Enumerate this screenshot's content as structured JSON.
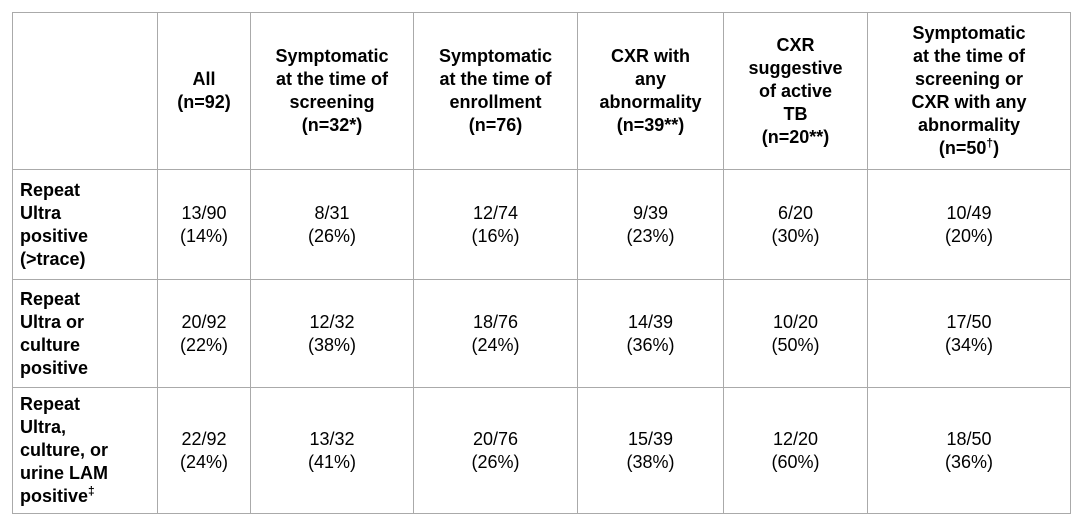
{
  "colors": {
    "background": "#ffffff",
    "border": "#aaaaaa",
    "text": "#000000"
  },
  "table": {
    "columns": [
      {
        "id": "row-label",
        "text": "",
        "sup": "",
        "post": ""
      },
      {
        "id": "all",
        "text": "All\n(n=92)",
        "sup": "",
        "post": ""
      },
      {
        "id": "symptomatic-screening",
        "text": "Symptomatic\nat the time of\nscreening\n(n=32*)",
        "sup": "",
        "post": ""
      },
      {
        "id": "symptomatic-enrollment",
        "text": "Symptomatic\nat the time of\nenrollment\n(n=76)",
        "sup": "",
        "post": ""
      },
      {
        "id": "cxr-any-abnormality",
        "text": "CXR with\nany\nabnormality\n(n=39**)",
        "sup": "",
        "post": ""
      },
      {
        "id": "cxr-active-tb",
        "text": "CXR\nsuggestive\nof active\nTB\n(n=20**)",
        "sup": "",
        "post": ""
      },
      {
        "id": "symptomatic-or-cxr",
        "text": "Symptomatic\nat the time of\nscreening or\nCXR with any\nabnormality\n(n=50",
        "sup": "†",
        "post": ")"
      }
    ],
    "rows": [
      {
        "label": {
          "text": "Repeat\nUltra\npositive\n(>trace)",
          "sup": "",
          "post": ""
        },
        "cells": [
          {
            "frac": "13/90",
            "pct": "(14%)"
          },
          {
            "frac": "8/31",
            "pct": "(26%)"
          },
          {
            "frac": "12/74",
            "pct": "(16%)"
          },
          {
            "frac": "9/39",
            "pct": "(23%)"
          },
          {
            "frac": "6/20",
            "pct": "(30%)"
          },
          {
            "frac": "10/49",
            "pct": "(20%)"
          }
        ]
      },
      {
        "label": {
          "text": "Repeat\nUltra or\nculture\npositive",
          "sup": "",
          "post": ""
        },
        "cells": [
          {
            "frac": "20/92",
            "pct": "(22%)"
          },
          {
            "frac": "12/32",
            "pct": "(38%)"
          },
          {
            "frac": "18/76",
            "pct": "(24%)"
          },
          {
            "frac": "14/39",
            "pct": "(36%)"
          },
          {
            "frac": "10/20",
            "pct": "(50%)"
          },
          {
            "frac": "17/50",
            "pct": "(34%)"
          }
        ]
      },
      {
        "label": {
          "text": "Repeat\nUltra,\nculture, or\nurine LAM\npositive",
          "sup": "‡",
          "post": ""
        },
        "cells": [
          {
            "frac": "22/92",
            "pct": "(24%)"
          },
          {
            "frac": "13/32",
            "pct": "(41%)"
          },
          {
            "frac": "20/76",
            "pct": "(26%)"
          },
          {
            "frac": "15/39",
            "pct": "(38%)"
          },
          {
            "frac": "12/20",
            "pct": "(60%)"
          },
          {
            "frac": "18/50",
            "pct": "(36%)"
          }
        ]
      }
    ]
  }
}
